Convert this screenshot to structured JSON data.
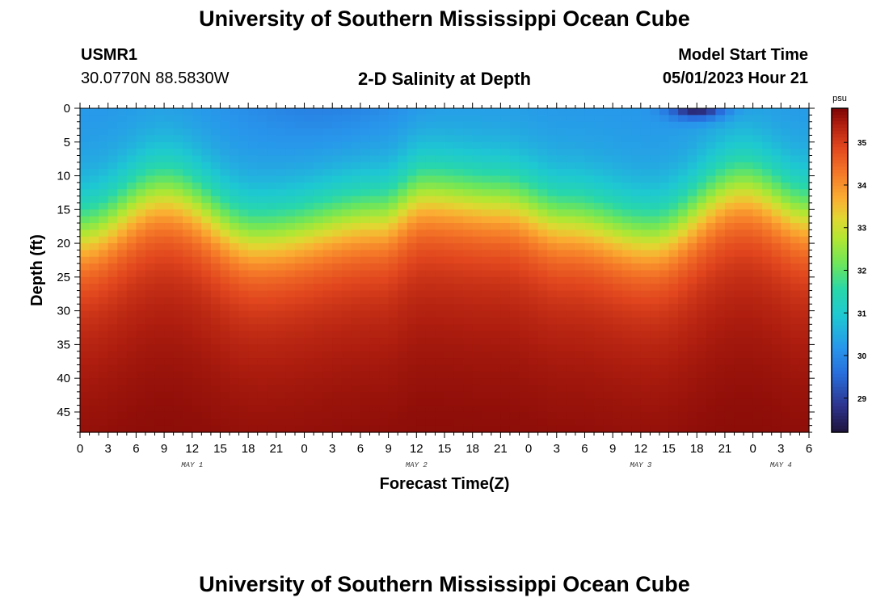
{
  "page": {
    "title": "University of Southern Mississippi Ocean Cube",
    "footer_title": "University of Southern Mississippi Ocean Cube",
    "station_id": "USMR1",
    "coordinates": "30.0770N  88.5830W",
    "start_label": "Model Start Time",
    "start_value": "05/01/2023 Hour 21"
  },
  "chart_data": {
    "type": "heatmap",
    "title": "2-D Salinity at Depth",
    "xlabel": "Forecast Time(Z)",
    "ylabel": "Depth (ft)",
    "colorbar_unit": "psu",
    "x_range_hours": [
      0,
      78
    ],
    "y_range_ft": [
      0,
      48
    ],
    "y_ticks": [
      0,
      5,
      10,
      15,
      20,
      25,
      30,
      35,
      40,
      45
    ],
    "x_tick_labels": [
      "0",
      "3",
      "6",
      "9",
      "12",
      "15",
      "18",
      "21",
      "0",
      "3",
      "6",
      "9",
      "12",
      "15",
      "18",
      "21",
      "0",
      "3",
      "6",
      "9",
      "12",
      "15",
      "18",
      "21",
      "0",
      "3",
      "6"
    ],
    "day_labels": [
      {
        "hour": 12,
        "label": "MAY 1"
      },
      {
        "hour": 36,
        "label": "MAY 2"
      },
      {
        "hour": 60,
        "label": "MAY 3"
      },
      {
        "hour": 75,
        "label": "MAY 4"
      }
    ],
    "colorbar_range": [
      28.2,
      35.8
    ],
    "colorbar_ticks": [
      29,
      30,
      31,
      32,
      33,
      34,
      35
    ],
    "halocline_depth_ft": [
      {
        "hour": 0,
        "depth": 17
      },
      {
        "hour": 9,
        "depth": 11
      },
      {
        "hour": 19,
        "depth": 17.5
      },
      {
        "hour": 32,
        "depth": 14.5
      },
      {
        "hour": 37,
        "depth": 11
      },
      {
        "hour": 45,
        "depth": 12
      },
      {
        "hour": 52,
        "depth": 15
      },
      {
        "hour": 61,
        "depth": 17.5
      },
      {
        "hour": 71,
        "depth": 10
      },
      {
        "hour": 78,
        "depth": 14
      }
    ],
    "surface_minimum": {
      "hour": 66,
      "depth": 0,
      "value": 28.4
    },
    "bottom_value": 35.8
  }
}
